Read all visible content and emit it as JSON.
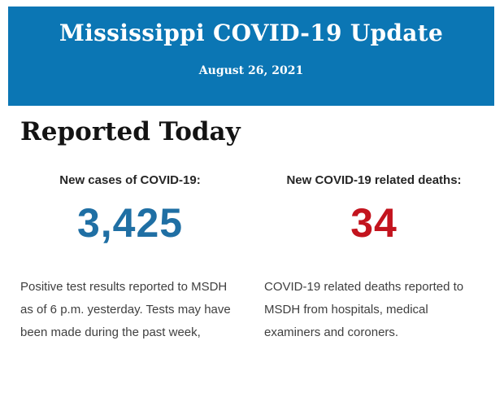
{
  "banner": {
    "title": "Mississippi COVID-19 Update",
    "date": "August 26, 2021",
    "background_color": "#0b76b4",
    "text_color": "#ffffff"
  },
  "report": {
    "heading": "Reported Today",
    "cases": {
      "label": "New cases of COVID-19:",
      "value": "3,425",
      "value_color": "#1f6fa4",
      "description": "Positive test results reported to MSDH as of 6 p.m. yesterday. Tests may have been made during the past week,"
    },
    "deaths": {
      "label": "New COVID-19 related deaths:",
      "value": "34",
      "value_color": "#c3141e",
      "description": "COVID-19 related deaths reported to MSDH from hospitals, medical examiners and coroners."
    }
  }
}
